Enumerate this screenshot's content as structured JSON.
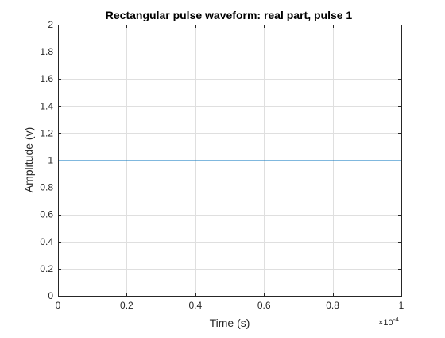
{
  "chart_data": {
    "type": "line",
    "title": "Rectangular pulse waveform: real part, pulse 1",
    "xlabel": "Time (s)",
    "ylabel": "Amplitude (v)",
    "x_exponent_label": "×10",
    "x_exponent_power": "-4",
    "xlim": [
      0,
      1
    ],
    "ylim": [
      0,
      2
    ],
    "x_ticks": [
      0,
      0.2,
      0.4,
      0.6,
      0.8,
      1
    ],
    "x_tick_labels": [
      "0",
      "0.2",
      "0.4",
      "0.6",
      "0.8",
      "1"
    ],
    "y_ticks": [
      0,
      0.2,
      0.4,
      0.6,
      0.8,
      1,
      1.2,
      1.4,
      1.6,
      1.8,
      2
    ],
    "y_tick_labels": [
      "0",
      "0.2",
      "0.4",
      "0.6",
      "0.8",
      "1",
      "1.2",
      "1.4",
      "1.6",
      "1.8",
      "2"
    ],
    "grid": true,
    "series": [
      {
        "x": [
          0,
          1
        ],
        "y": [
          1,
          1
        ],
        "color": "#0072BD"
      }
    ]
  },
  "colors": {
    "background": "#ffffff",
    "axes_line": "#262626",
    "grid": "#dfdfdf",
    "text": "#262626",
    "title": "#000000"
  }
}
